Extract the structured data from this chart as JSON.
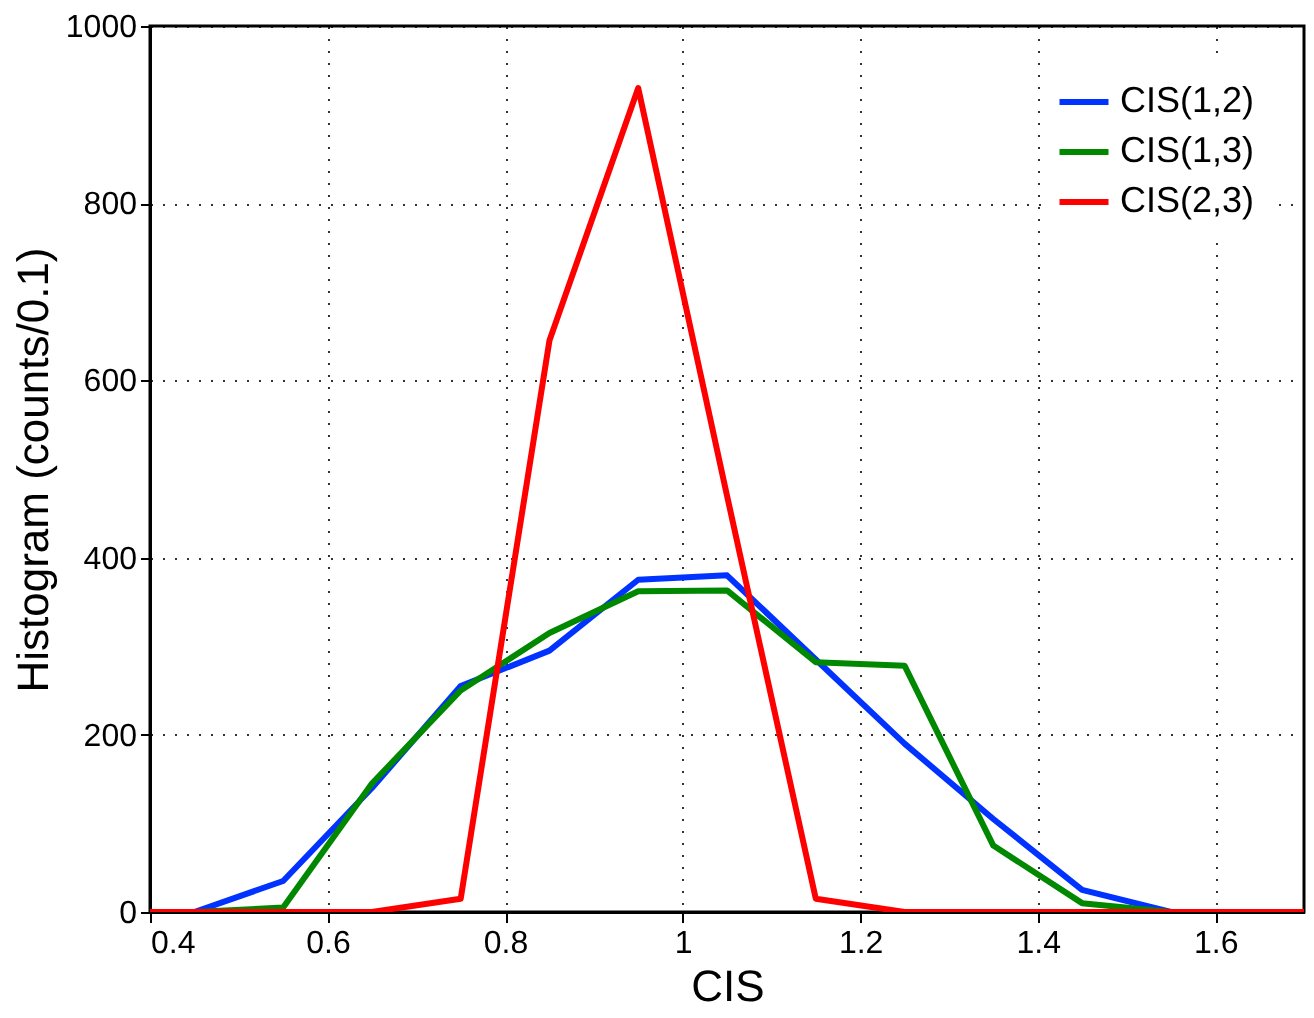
{
  "chart_data": {
    "type": "line",
    "xlabel": "CIS",
    "ylabel": "Histogram (counts/0.1)",
    "x": [
      0.4,
      0.45,
      0.55,
      0.65,
      0.75,
      0.85,
      0.95,
      1.05,
      1.15,
      1.25,
      1.35,
      1.45,
      1.55,
      1.65,
      1.7
    ],
    "series": [
      {
        "name": "CIS(1,2)",
        "color": "#0033ff",
        "values": [
          0,
          0,
          35,
          140,
          255,
          295,
          375,
          380,
          285,
          190,
          105,
          25,
          0,
          0,
          0
        ]
      },
      {
        "name": "CIS(1,3)",
        "color": "#008800",
        "values": [
          0,
          0,
          5,
          145,
          250,
          315,
          362,
          363,
          282,
          278,
          75,
          10,
          0,
          0,
          0
        ]
      },
      {
        "name": "CIS(2,3)",
        "color": "#ff0000",
        "values": [
          0,
          0,
          0,
          0,
          15,
          645,
          930,
          470,
          15,
          0,
          0,
          0,
          0,
          0,
          0
        ]
      }
    ],
    "xlim": [
      0.4,
      1.7
    ],
    "xticks": [
      0.4,
      0.6,
      0.8,
      1,
      1.2,
      1.4,
      1.6
    ],
    "ylim": [
      0,
      1000
    ],
    "yticks": [
      0,
      200,
      400,
      600,
      800,
      1000
    ],
    "grid": true,
    "legend": "top right",
    "line_style": "solid",
    "marker": "none"
  }
}
